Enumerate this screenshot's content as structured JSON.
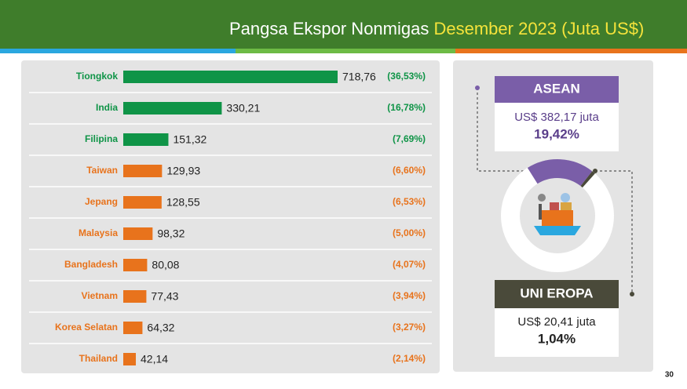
{
  "chart_data": {
    "type": "bar",
    "orientation": "horizontal",
    "title": "Pangsa Ekspor Nonmigas",
    "title_highlight": "Desember 2023 (Juta US$)",
    "categories": [
      "Tiongkok",
      "India",
      "Filipina",
      "Taiwan",
      "Jepang",
      "Malaysia",
      "Bangladesh",
      "Vietnam",
      "Korea Selatan",
      "Thailand"
    ],
    "values": [
      718.76,
      330.21,
      151.32,
      129.93,
      128.55,
      98.32,
      80.08,
      77.43,
      64.32,
      42.14
    ],
    "value_labels": [
      "718,76",
      "330,21",
      "151,32",
      "129,93",
      "128,55",
      "98,32",
      "80,08",
      "77,43",
      "64,32",
      "42,14"
    ],
    "shares": [
      {
        "value": 36.53,
        "label": "(36,53%)"
      },
      {
        "value": 16.78,
        "label": "(16,78%)"
      },
      {
        "value": 7.69,
        "label": "(7,69%)"
      },
      {
        "value": 6.6,
        "label": "(6,60%)"
      },
      {
        "value": 6.53,
        "label": "(6,53%)"
      },
      {
        "value": 5.0,
        "label": "(5,00%)"
      },
      {
        "value": 4.07,
        "label": "(4,07%)"
      },
      {
        "value": 3.94,
        "label": "(3,94%)"
      },
      {
        "value": 3.27,
        "label": "(3,27%)"
      },
      {
        "value": 2.14,
        "label": "(2,14%)"
      }
    ],
    "colors": [
      "#0f9447",
      "#0f9447",
      "#0f9447",
      "#e8731c",
      "#e8731c",
      "#e8731c",
      "#e8731c",
      "#e8731c",
      "#e8731c",
      "#e8731c"
    ]
  },
  "side": {
    "asean": {
      "name": "ASEAN",
      "amount": "US$ 382,17 juta",
      "share": 19.42,
      "share_label": "19,42%",
      "color": "#7a5ea8"
    },
    "eu": {
      "name": "UNI EROPA",
      "amount": "US$ 20,41 juta",
      "share": 1.04,
      "share_label": "1,04%",
      "color": "#4a4a3a"
    }
  },
  "page_number": "30"
}
